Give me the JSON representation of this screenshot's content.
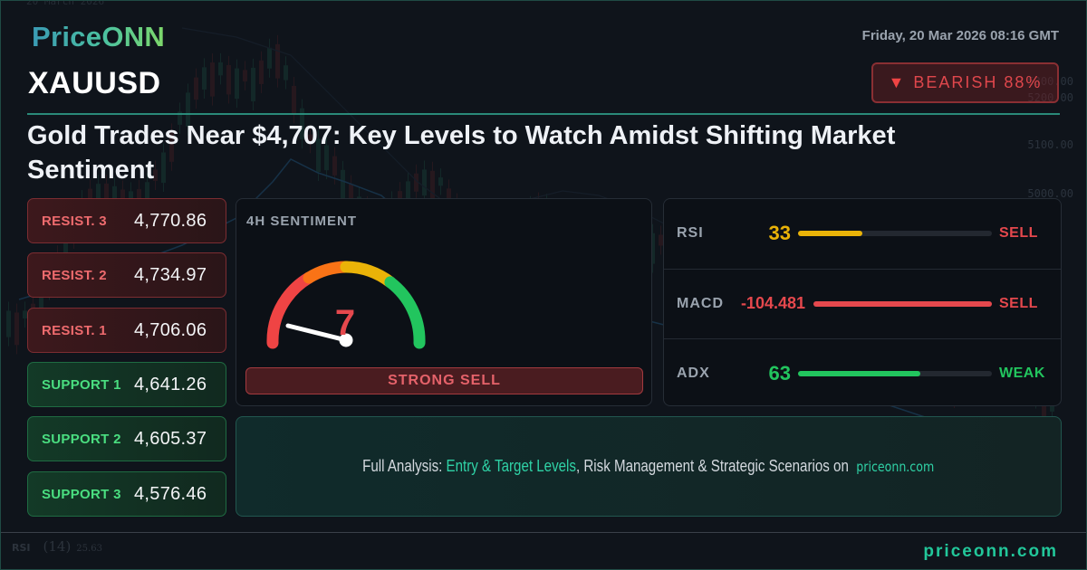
{
  "brand": {
    "logo": "PriceONN",
    "footer_site": "priceonn.com"
  },
  "header": {
    "datetime": "Friday, 20 Mar 2026 08:16 GMT",
    "symbol": "XAUUSD",
    "bias_badge": {
      "icon": "triangle-down-icon",
      "glyph": "▼",
      "label": "BEARISH 88%",
      "color": "#e0474c"
    },
    "headline": "Gold Trades Near $4,707: Key Levels to Watch Amidst Shifting Market Sentiment"
  },
  "levels": {
    "resistance": [
      {
        "label": "RESIST. 3",
        "value": "4,770.86"
      },
      {
        "label": "RESIST. 2",
        "value": "4,734.97"
      },
      {
        "label": "RESIST. 1",
        "value": "4,706.06"
      }
    ],
    "support": [
      {
        "label": "SUPPORT 1",
        "value": "4,641.26"
      },
      {
        "label": "SUPPORT 2",
        "value": "4,605.37"
      },
      {
        "label": "SUPPORT 3",
        "value": "4,576.46"
      }
    ]
  },
  "sentiment": {
    "title": "4H SENTIMENT",
    "score": "7",
    "score_max": 100,
    "verdict": "STRONG SELL",
    "gauge_colors": [
      "#ef4444",
      "#f97316",
      "#eab308",
      "#22c55e"
    ]
  },
  "indicators": [
    {
      "name": "RSI",
      "value": "33",
      "value_color": "#eab308",
      "bar_pct": 33,
      "bar_color": "#eab308",
      "signal": "SELL",
      "signal_color": "#e5484d"
    },
    {
      "name": "MACD",
      "value": "-104.481",
      "value_color": "#e5484d",
      "bar_pct": 100,
      "bar_color": "#e5484d",
      "signal": "SELL",
      "signal_color": "#e5484d"
    },
    {
      "name": "ADX",
      "value": "63",
      "value_color": "#22c55e",
      "bar_pct": 63,
      "bar_color": "#22c55e",
      "signal": "WEAK",
      "signal_color": "#22c55e"
    }
  ],
  "cta": {
    "prefix": "Full Analysis: ",
    "highlight": "Entry & Target Levels",
    "middle": ", Risk Management & Strategic Scenarios on ",
    "site": "priceonn.com"
  },
  "background_chart": {
    "axis_labels": [
      "5300.00",
      "5200.00",
      "5100.00",
      "5000.00"
    ],
    "rsi_label": "RSI",
    "rsi_period": "(14)",
    "rsi_value": "25.63"
  }
}
